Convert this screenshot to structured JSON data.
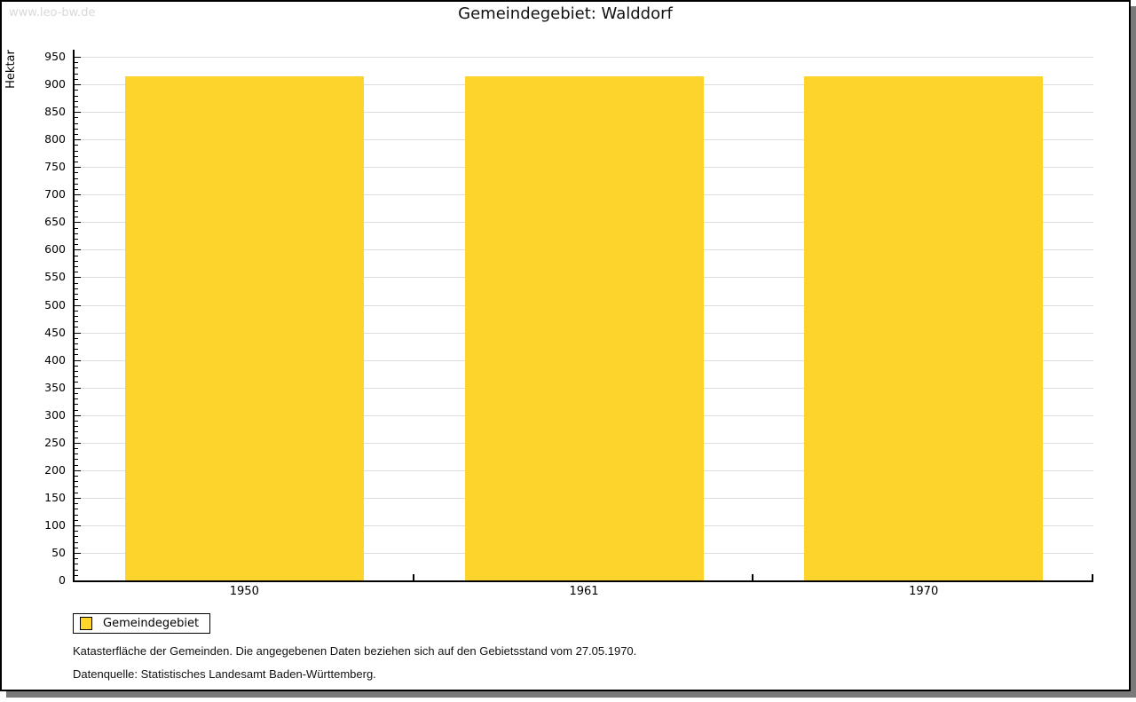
{
  "watermark": "www.leo-bw.de",
  "title": "Gemeindegebiet: Walddorf",
  "legend": {
    "items": [
      {
        "label": "Gemeindegebiet",
        "color": "#FCD42C"
      }
    ]
  },
  "footnotes": [
    "Katasterfläche der Gemeinden. Die angegebenen Daten beziehen sich auf den Gebietsstand vom 27.05.1970.",
    "Datenquelle: Statistisches Landesamt Baden-Württemberg."
  ],
  "colors": {
    "bar": "#FCD42C",
    "gridline": "#dddddd",
    "axis": "#000000",
    "watermark": "#d9d9d9",
    "shadow": "#7a7a7a",
    "background": "#ffffff"
  },
  "chart_data": {
    "type": "bar",
    "title": "Gemeindegebiet: Walddorf",
    "categories": [
      "1950",
      "1961",
      "1970"
    ],
    "series": [
      {
        "name": "Gemeindegebiet",
        "values": [
          915,
          915,
          915
        ]
      }
    ],
    "xlabel": "",
    "ylabel": "Hektar",
    "ylim": [
      0,
      950
    ],
    "y_major_tick_step": 50,
    "y_minor_tick_step": 10,
    "grid": true,
    "legend_position": "bottom-left",
    "bar_color": "#FCD42C"
  }
}
